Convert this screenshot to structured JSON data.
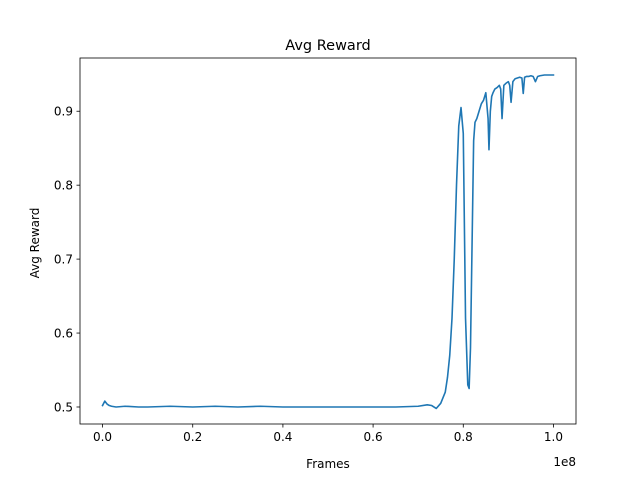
{
  "chart_data": {
    "type": "line",
    "title": "Avg Reward",
    "xlabel": "Frames",
    "ylabel": "Avg Reward",
    "x_offset_label": "1e8",
    "xlim": [
      -0.05,
      1.05
    ],
    "ylim": [
      0.477,
      0.972
    ],
    "x_ticks": [
      0.0,
      0.2,
      0.4,
      0.6,
      0.8,
      1.0
    ],
    "x_tick_labels": [
      "0.0",
      "0.2",
      "0.4",
      "0.6",
      "0.8",
      "1.0"
    ],
    "y_ticks": [
      0.5,
      0.6,
      0.7,
      0.8,
      0.9
    ],
    "y_tick_labels": [
      "0.5",
      "0.6",
      "0.7",
      "0.8",
      "0.9"
    ],
    "grid": false,
    "series": [
      {
        "color": "#1f77b4",
        "x": [
          0.0,
          0.005,
          0.01,
          0.015,
          0.02,
          0.03,
          0.05,
          0.08,
          0.1,
          0.15,
          0.2,
          0.25,
          0.3,
          0.35,
          0.4,
          0.45,
          0.5,
          0.55,
          0.6,
          0.65,
          0.7,
          0.72,
          0.73,
          0.74,
          0.75,
          0.76,
          0.765,
          0.77,
          0.775,
          0.78,
          0.785,
          0.79,
          0.795,
          0.8,
          0.805,
          0.81,
          0.813,
          0.816,
          0.82,
          0.823,
          0.826,
          0.83,
          0.835,
          0.84,
          0.845,
          0.85,
          0.855,
          0.857,
          0.86,
          0.863,
          0.866,
          0.87,
          0.875,
          0.88,
          0.883,
          0.886,
          0.89,
          0.895,
          0.9,
          0.903,
          0.906,
          0.91,
          0.915,
          0.92,
          0.925,
          0.93,
          0.933,
          0.936,
          0.94,
          0.945,
          0.95,
          0.955,
          0.96,
          0.965,
          0.97,
          0.98,
          0.99,
          1.0
        ],
        "y": [
          0.502,
          0.508,
          0.504,
          0.502,
          0.501,
          0.5,
          0.501,
          0.5,
          0.5,
          0.501,
          0.5,
          0.501,
          0.5,
          0.501,
          0.5,
          0.5,
          0.5,
          0.5,
          0.5,
          0.5,
          0.501,
          0.503,
          0.502,
          0.498,
          0.505,
          0.52,
          0.54,
          0.57,
          0.62,
          0.7,
          0.8,
          0.88,
          0.905,
          0.87,
          0.62,
          0.53,
          0.525,
          0.58,
          0.74,
          0.86,
          0.885,
          0.89,
          0.9,
          0.91,
          0.915,
          0.925,
          0.89,
          0.848,
          0.9,
          0.92,
          0.925,
          0.93,
          0.932,
          0.935,
          0.93,
          0.89,
          0.935,
          0.938,
          0.94,
          0.935,
          0.912,
          0.94,
          0.944,
          0.945,
          0.946,
          0.945,
          0.924,
          0.946,
          0.947,
          0.947,
          0.948,
          0.947,
          0.94,
          0.947,
          0.948,
          0.949,
          0.949,
          0.949
        ]
      }
    ]
  }
}
